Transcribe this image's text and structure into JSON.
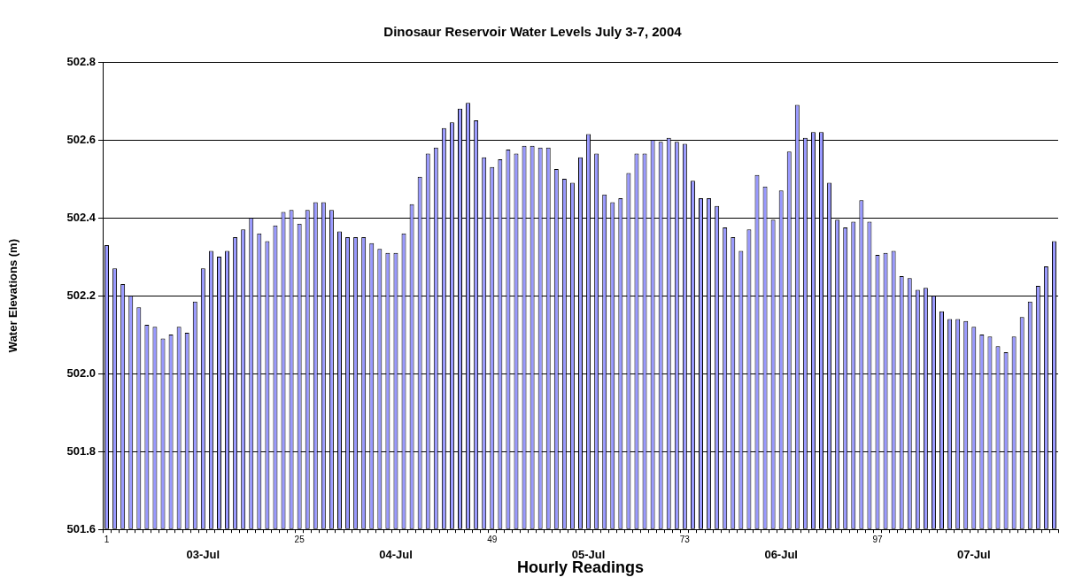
{
  "chart_data": {
    "type": "bar",
    "title": "Dinosaur Reservoir Water Levels July 3-7, 2004",
    "xlabel": "Hourly Readings",
    "ylabel": "Water Elevations (m)",
    "categories": [
      "1",
      null,
      null,
      null,
      null,
      null,
      null,
      null,
      null,
      null,
      null,
      null,
      "03-Jul",
      null,
      null,
      null,
      null,
      null,
      null,
      null,
      null,
      null,
      null,
      null,
      "25",
      null,
      null,
      null,
      null,
      null,
      null,
      null,
      null,
      null,
      null,
      null,
      "04-Jul",
      null,
      null,
      null,
      null,
      null,
      null,
      null,
      null,
      null,
      null,
      null,
      "49",
      null,
      null,
      null,
      null,
      null,
      null,
      null,
      null,
      null,
      null,
      null,
      "05-Jul",
      null,
      null,
      null,
      null,
      null,
      null,
      null,
      null,
      null,
      null,
      null,
      "73",
      null,
      null,
      null,
      null,
      null,
      null,
      null,
      null,
      null,
      null,
      null,
      "06-Jul",
      null,
      null,
      null,
      null,
      null,
      null,
      null,
      null,
      null,
      null,
      null,
      "97",
      null,
      null,
      null,
      null,
      null,
      null,
      null,
      null,
      null,
      null,
      null,
      "07-Jul",
      null,
      null,
      null,
      null,
      null,
      null,
      null,
      null,
      null,
      null
    ],
    "values": [
      502.33,
      502.27,
      502.23,
      502.2,
      502.17,
      502.125,
      502.12,
      502.09,
      502.1,
      502.12,
      502.105,
      502.185,
      502.27,
      502.315,
      502.3,
      502.315,
      502.35,
      502.37,
      502.4,
      502.36,
      502.34,
      502.38,
      502.415,
      502.42,
      502.385,
      502.42,
      502.44,
      502.44,
      502.42,
      502.365,
      502.35,
      502.35,
      502.35,
      502.335,
      502.32,
      502.31,
      502.31,
      502.36,
      502.435,
      502.505,
      502.565,
      502.58,
      502.63,
      502.645,
      502.68,
      502.695,
      502.65,
      502.555,
      502.53,
      502.55,
      502.575,
      502.565,
      502.585,
      502.585,
      502.58,
      502.58,
      502.525,
      502.5,
      502.49,
      502.555,
      502.615,
      502.565,
      502.46,
      502.44,
      502.45,
      502.515,
      502.565,
      502.565,
      502.6,
      502.595,
      502.605,
      502.595,
      502.59,
      502.495,
      502.45,
      502.45,
      502.43,
      502.375,
      502.35,
      502.315,
      502.37,
      502.51,
      502.48,
      502.395,
      502.47,
      502.57,
      502.69,
      502.605,
      502.62,
      502.62,
      502.49,
      502.395,
      502.375,
      502.39,
      502.445,
      502.39,
      502.305,
      502.31,
      502.315,
      502.25,
      502.245,
      502.215,
      502.22,
      502.2,
      502.16,
      502.14,
      502.14,
      502.135,
      502.12,
      502.1,
      502.095,
      502.07,
      502.055,
      502.095,
      502.145,
      502.185,
      502.225,
      502.275,
      502.34
    ],
    "color": "#9999ff",
    "ylim": [
      501.6,
      502.8
    ],
    "yticks": [
      {
        "value": 501.6,
        "label": "501.6"
      },
      {
        "value": 501.8,
        "label": "501.8"
      },
      {
        "value": 502,
        "label": "502.0"
      },
      {
        "value": 502.2,
        "label": "502.2"
      },
      {
        "value": 502.4,
        "label": "502.4"
      },
      {
        "value": 502.6,
        "label": "502.6"
      },
      {
        "value": 502.8,
        "label": "502.8"
      }
    ],
    "grid": "y",
    "legend": false
  }
}
